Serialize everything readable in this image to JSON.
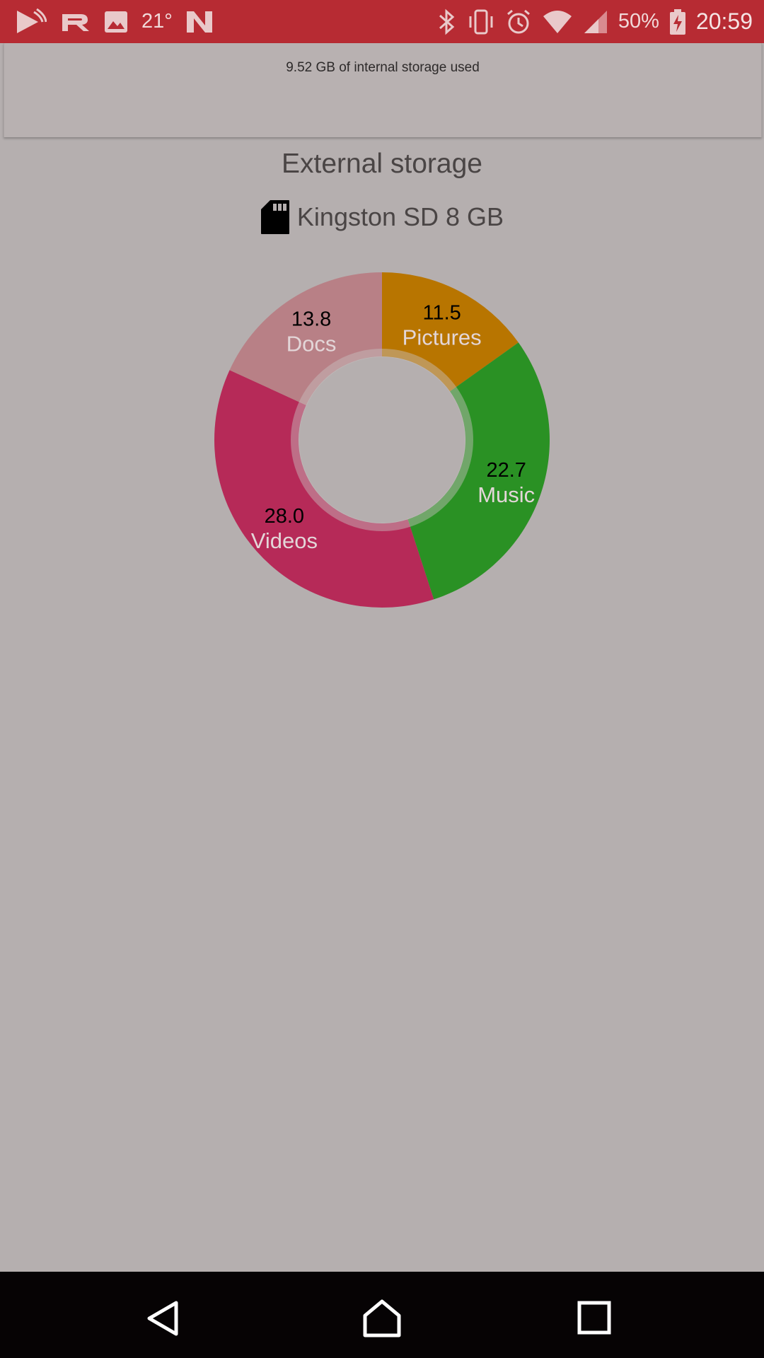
{
  "status_bar": {
    "left_icons": [
      "play-store-icon",
      "r-app-icon",
      "image-icon",
      "temperature-icon",
      "n-app-icon"
    ],
    "temperature": "21°",
    "right_icons": [
      "bluetooth-icon",
      "vibrate-icon",
      "alarm-icon",
      "wifi-icon",
      "signal-icon",
      "battery-icon"
    ],
    "battery_percent": "50%",
    "time": "20:59"
  },
  "internal": {
    "storage_used_text": "9.52 GB of internal storage used"
  },
  "external": {
    "title": "External storage",
    "device_icon": "sd-card-icon",
    "device_name": "Kingston SD 8 GB"
  },
  "chart_data": {
    "type": "pie",
    "style": "donut",
    "slices": [
      {
        "label": "Pictures",
        "value": 11.5,
        "color": "#b87500"
      },
      {
        "label": "Music",
        "value": 22.7,
        "color": "#2a9124"
      },
      {
        "label": "Videos",
        "value": 28.0,
        "color": "#b62a58"
      },
      {
        "label": "Docs",
        "value": 13.8,
        "color": "#b88086"
      }
    ]
  },
  "colors": {
    "status_bar": "#b72b33",
    "background": "#b5afaf",
    "nav_bar": "#060304"
  },
  "nav_bar": {
    "buttons": [
      "back-icon",
      "home-icon",
      "recents-icon"
    ]
  }
}
